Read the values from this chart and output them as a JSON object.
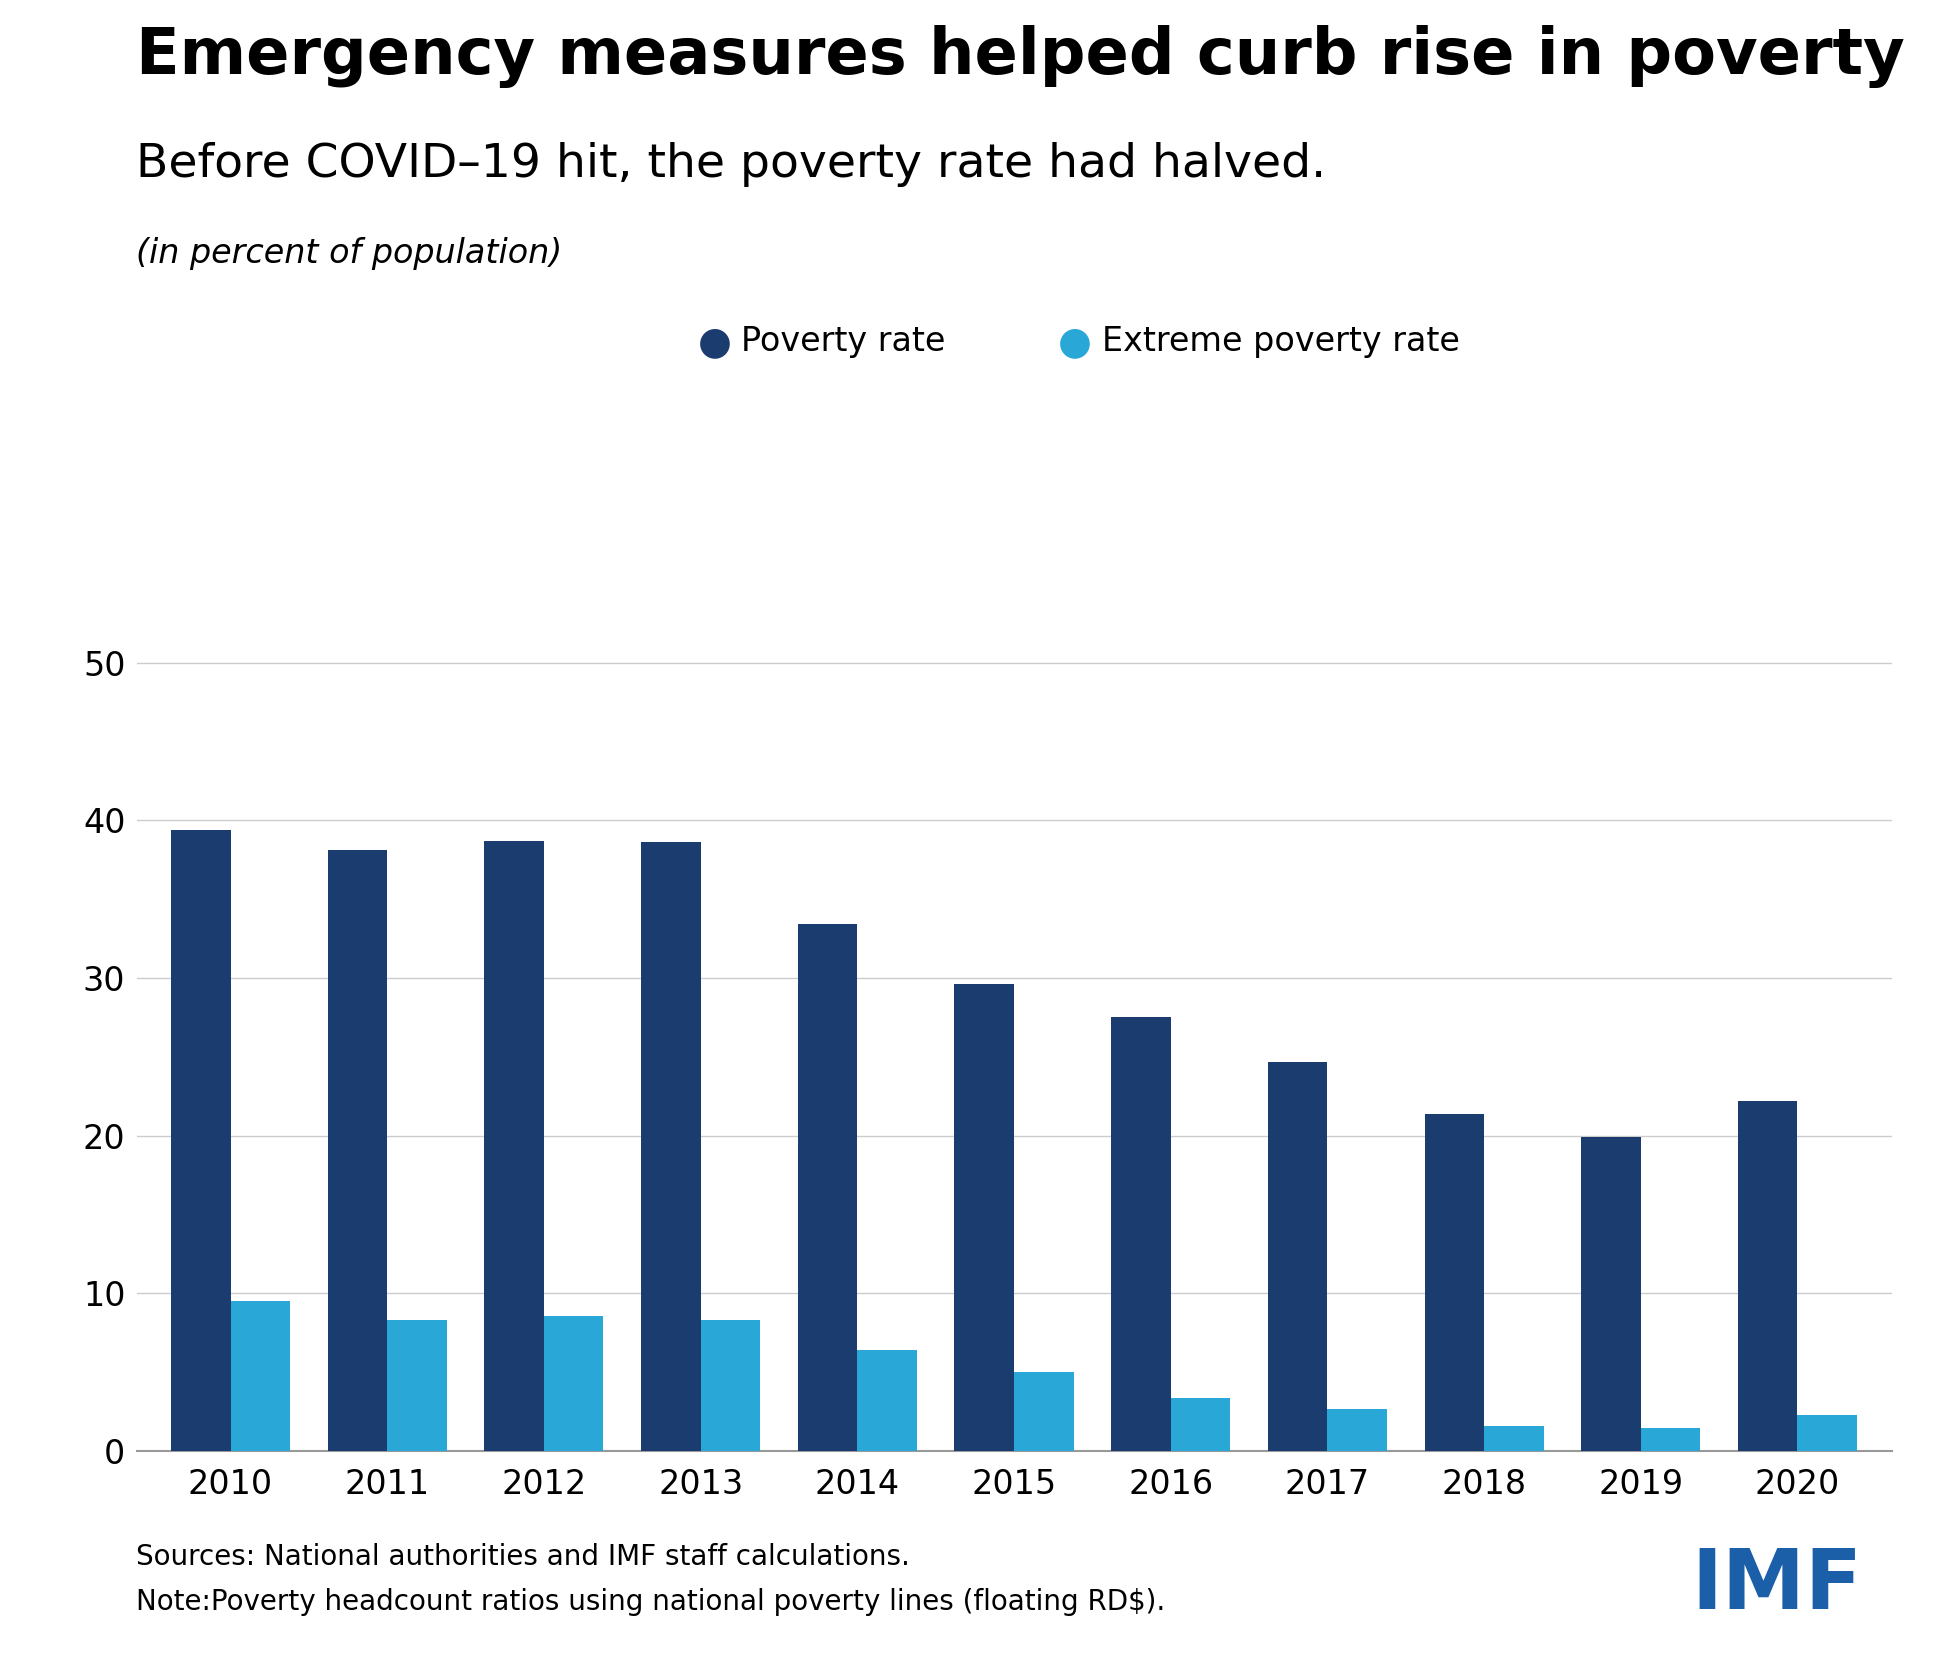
{
  "title": "Emergency measures helped curb rise in poverty",
  "subtitle": "Before COVID–19 hit, the poverty rate had halved.",
  "unit_label": "(in percent of population)",
  "years": [
    2010,
    2011,
    2012,
    2013,
    2014,
    2015,
    2016,
    2017,
    2018,
    2019,
    2020
  ],
  "poverty_rate": [
    39.4,
    38.1,
    38.7,
    38.6,
    33.4,
    29.6,
    27.5,
    24.7,
    21.4,
    19.9,
    22.2
  ],
  "extreme_poverty_rate": [
    9.5,
    8.3,
    8.6,
    8.3,
    6.4,
    5.0,
    3.4,
    2.7,
    1.6,
    1.5,
    2.3
  ],
  "poverty_color": "#1a3c6e",
  "extreme_poverty_color": "#29a8d8",
  "legend_label_1": "Poverty rate",
  "legend_label_2": "Extreme poverty rate",
  "ylim": [
    0,
    55
  ],
  "yticks": [
    0,
    10,
    20,
    30,
    40,
    50
  ],
  "source_line1": "Sources: National authorities and IMF staff calculations.",
  "source_line2": "Note:Poverty headcount ratios using national poverty lines (floating RD$).",
  "imf_text": "IMF",
  "background_color": "#ffffff",
  "bar_width": 0.38,
  "grid_color": "#cccccc",
  "axis_color": "#999999"
}
